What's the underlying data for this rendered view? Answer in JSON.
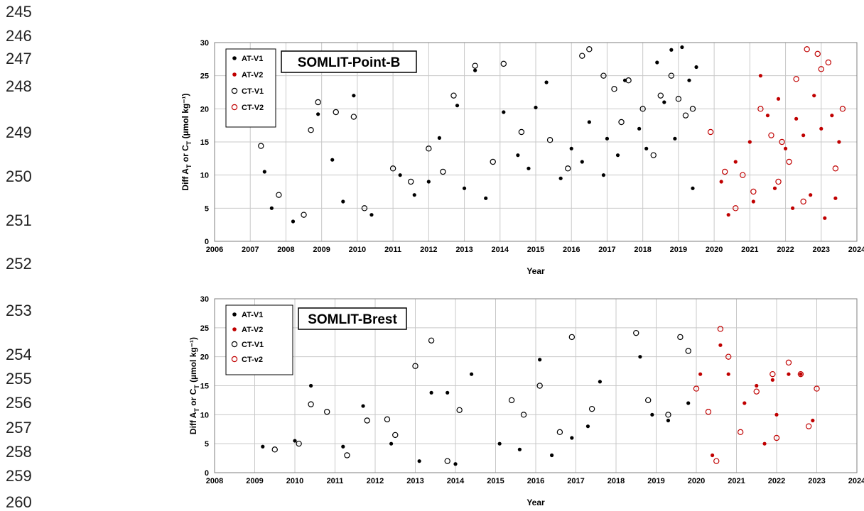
{
  "line_numbers": [
    {
      "n": "245"
    },
    {
      "n": "246"
    },
    {
      "n": "247"
    },
    {
      "n": "248"
    },
    {
      "n": "249"
    },
    {
      "n": "250"
    },
    {
      "n": "251"
    },
    {
      "n": "252"
    },
    {
      "n": "253"
    },
    {
      "n": "254"
    },
    {
      "n": "255"
    },
    {
      "n": "256"
    },
    {
      "n": "257"
    },
    {
      "n": "258"
    },
    {
      "n": "259"
    },
    {
      "n": "260"
    }
  ],
  "colors": {
    "v1": "#000000",
    "v2": "#c00000",
    "grid": "#c8c8c8"
  },
  "chart_data": [
    {
      "type": "scatter",
      "title": "SOMLIT-Point-B",
      "xlabel": "Year",
      "ylabel": "Diff A_T or C_T (µmol kg⁻¹)",
      "xlim": [
        2006,
        2024
      ],
      "ylim": [
        0,
        30
      ],
      "xticks": [
        2006,
        2007,
        2008,
        2009,
        2010,
        2011,
        2012,
        2013,
        2014,
        2015,
        2016,
        2017,
        2018,
        2019,
        2020,
        2021,
        2022,
        2023,
        2024
      ],
      "yticks": [
        0,
        5,
        10,
        15,
        20,
        25,
        30
      ],
      "grid": true,
      "legend_position": "top-left",
      "series": [
        {
          "name": "AT-V1",
          "marker": "filled",
          "color": "#000000",
          "x": [
            2007.4,
            2008.9,
            2009.3,
            2009.9,
            2011.2,
            2012.3,
            2012.8,
            2013.3,
            2014.1,
            2014.5,
            2015.0,
            2015.3,
            2016.0,
            2016.5,
            2017.0,
            2017.5,
            2017.9,
            2018.4,
            2018.6,
            2018.8,
            2019.1,
            2019.3,
            2019.5,
            2007.6,
            2008.2,
            2009.6,
            2010.4,
            2011.6,
            2012.0,
            2013.0,
            2013.6,
            2014.8,
            2015.7,
            2016.3,
            2016.9,
            2017.3,
            2018.1,
            2018.9,
            2019.4
          ],
          "y": [
            10.5,
            19.2,
            12.3,
            22.0,
            10.0,
            15.6,
            20.5,
            25.8,
            19.5,
            13.0,
            20.2,
            24.0,
            14.0,
            18.0,
            15.5,
            24.3,
            17.0,
            27.0,
            21.0,
            28.9,
            29.3,
            24.3,
            26.3,
            5.0,
            3.0,
            6.0,
            4.0,
            7.0,
            9.0,
            8.0,
            6.5,
            11.0,
            9.5,
            12.0,
            10.0,
            13.0,
            14.0,
            15.5,
            8.0
          ]
        },
        {
          "name": "AT-V2",
          "marker": "filled",
          "color": "#c00000",
          "x": [
            2020.2,
            2020.6,
            2021.0,
            2021.3,
            2021.5,
            2021.8,
            2022.0,
            2022.3,
            2022.5,
            2022.8,
            2023.0,
            2023.3,
            2023.5,
            2020.4,
            2021.1,
            2021.7,
            2022.2,
            2022.7,
            2023.1,
            2023.4
          ],
          "y": [
            9.0,
            12.0,
            15.0,
            25.0,
            19.0,
            21.5,
            14.0,
            18.5,
            16.0,
            22.0,
            17.0,
            19.0,
            15.0,
            4.0,
            6.0,
            8.0,
            5.0,
            7.0,
            3.5,
            6.5
          ]
        },
        {
          "name": "CT-V1",
          "marker": "open",
          "color": "#000000",
          "x": [
            2007.3,
            2008.7,
            2008.9,
            2009.4,
            2009.9,
            2011.0,
            2012.0,
            2012.7,
            2013.3,
            2014.1,
            2015.4,
            2016.3,
            2016.5,
            2016.9,
            2017.2,
            2017.6,
            2018.0,
            2018.5,
            2018.8,
            2019.0,
            2019.4,
            2007.8,
            2008.5,
            2010.2,
            2011.5,
            2012.4,
            2013.8,
            2014.6,
            2015.9,
            2017.4,
            2018.3,
            2019.2
          ],
          "y": [
            14.4,
            16.8,
            21.0,
            19.5,
            18.8,
            11.0,
            14.0,
            22.0,
            26.5,
            26.8,
            15.3,
            28.0,
            29.0,
            25.0,
            23.0,
            24.3,
            20.0,
            22.0,
            25.0,
            21.5,
            20.0,
            7.0,
            4.0,
            5.0,
            9.0,
            10.5,
            12.0,
            16.5,
            11.0,
            18.0,
            13.0,
            19.0
          ]
        },
        {
          "name": "CT-V2",
          "marker": "open",
          "color": "#c00000",
          "x": [
            2019.9,
            2020.3,
            2020.8,
            2021.3,
            2021.6,
            2021.9,
            2022.3,
            2022.6,
            2022.9,
            2023.0,
            2023.2,
            2023.6,
            2020.6,
            2021.1,
            2021.8,
            2022.1,
            2022.5,
            2023.4
          ],
          "y": [
            16.5,
            10.5,
            10.0,
            20.0,
            16.0,
            15.0,
            24.5,
            29.0,
            28.3,
            26.0,
            27.0,
            20.0,
            5.0,
            7.5,
            9.0,
            12.0,
            6.0,
            11.0
          ]
        }
      ]
    },
    {
      "type": "scatter",
      "title": "SOMLIT-Brest",
      "xlabel": "Year",
      "ylabel": "Diff A_T or C_T (µmol kg⁻¹)",
      "xlim": [
        2008,
        2024
      ],
      "ylim": [
        0,
        30
      ],
      "xticks": [
        2008,
        2009,
        2010,
        2011,
        2012,
        2013,
        2014,
        2015,
        2016,
        2017,
        2018,
        2019,
        2020,
        2021,
        2022,
        2023,
        2024
      ],
      "yticks": [
        0,
        5,
        10,
        15,
        20,
        25,
        30
      ],
      "grid": true,
      "legend_position": "top-left",
      "series": [
        {
          "name": "AT-V1",
          "marker": "filled",
          "color": "#000000",
          "x": [
            2010.4,
            2011.7,
            2013.4,
            2013.8,
            2014.4,
            2016.1,
            2017.6,
            2018.6,
            2019.8,
            2009.2,
            2010.0,
            2011.2,
            2012.4,
            2013.1,
            2014.0,
            2015.1,
            2015.6,
            2016.4,
            2016.9,
            2017.3,
            2018.9,
            2019.3
          ],
          "y": [
            15.0,
            11.5,
            13.8,
            13.8,
            17.0,
            19.5,
            15.7,
            20.0,
            12.0,
            4.5,
            5.5,
            4.5,
            5.0,
            2.0,
            1.5,
            5.0,
            4.0,
            3.0,
            6.0,
            8.0,
            10.0,
            9.0
          ]
        },
        {
          "name": "AT-V2",
          "marker": "filled",
          "color": "#c00000",
          "x": [
            2020.1,
            2020.6,
            2020.8,
            2021.5,
            2021.9,
            2022.3,
            2022.6,
            2022.9,
            2021.2,
            2022.0,
            2020.4,
            2021.7
          ],
          "y": [
            17.0,
            22.0,
            17.0,
            15.0,
            16.0,
            17.0,
            17.0,
            9.0,
            12.0,
            10.0,
            3.0,
            5.0
          ]
        },
        {
          "name": "CT-V1",
          "marker": "open",
          "color": "#000000",
          "x": [
            2010.4,
            2010.8,
            2011.8,
            2012.3,
            2013.0,
            2013.4,
            2014.1,
            2015.4,
            2016.1,
            2016.9,
            2018.5,
            2019.6,
            2019.8,
            2009.5,
            2010.1,
            2011.3,
            2012.5,
            2013.8,
            2015.7,
            2016.6,
            2017.4,
            2018.8,
            2019.3
          ],
          "y": [
            11.8,
            10.5,
            9.0,
            9.2,
            18.4,
            22.8,
            10.8,
            12.5,
            15.0,
            23.4,
            24.1,
            23.4,
            21.0,
            4.0,
            5.0,
            3.0,
            6.5,
            2.0,
            10.0,
            7.0,
            11.0,
            12.5,
            10.0
          ]
        },
        {
          "name": "CT-v2",
          "marker": "open",
          "color": "#c00000",
          "x": [
            2020.0,
            2020.3,
            2020.6,
            2020.8,
            2021.5,
            2021.9,
            2022.3,
            2022.6,
            2023.0,
            2021.1,
            2022.0,
            2022.8,
            2020.5
          ],
          "y": [
            14.5,
            10.5,
            24.8,
            20.0,
            14.0,
            17.0,
            19.0,
            17.0,
            14.5,
            7.0,
            6.0,
            8.0,
            2.0
          ]
        }
      ]
    }
  ]
}
